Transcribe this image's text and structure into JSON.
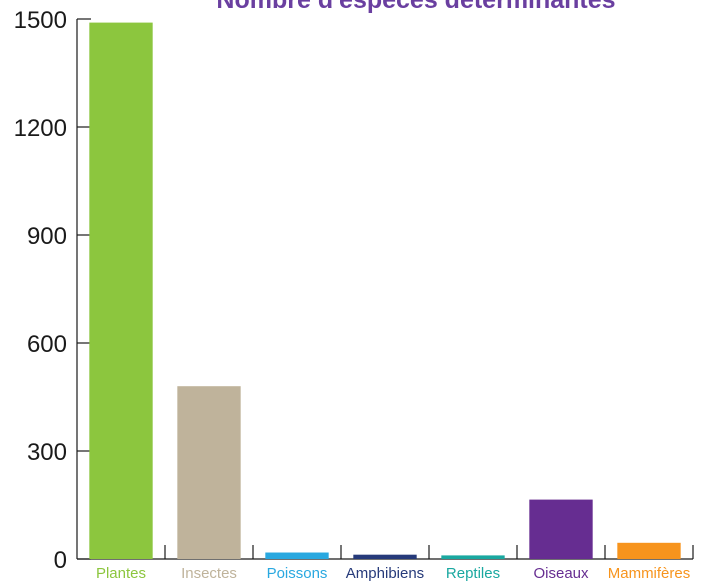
{
  "chart_data": {
    "type": "bar",
    "title": "Nombre d'espèces déterminantes",
    "xlabel": "",
    "ylabel": "",
    "ylim": [
      0,
      1500
    ],
    "yticks": [
      0,
      300,
      600,
      900,
      1200,
      1500
    ],
    "grid": false,
    "categories": [
      "Plantes",
      "Insectes",
      "Poissons",
      "Amphibiens",
      "Reptiles",
      "Oiseaux",
      "Mammifères"
    ],
    "values": [
      1490,
      480,
      18,
      12,
      10,
      165,
      45
    ],
    "colors": [
      "#8cc63e",
      "#bfb39b",
      "#29a8e0",
      "#263a7a",
      "#1aa8a0",
      "#662d91",
      "#f7941d"
    ]
  }
}
